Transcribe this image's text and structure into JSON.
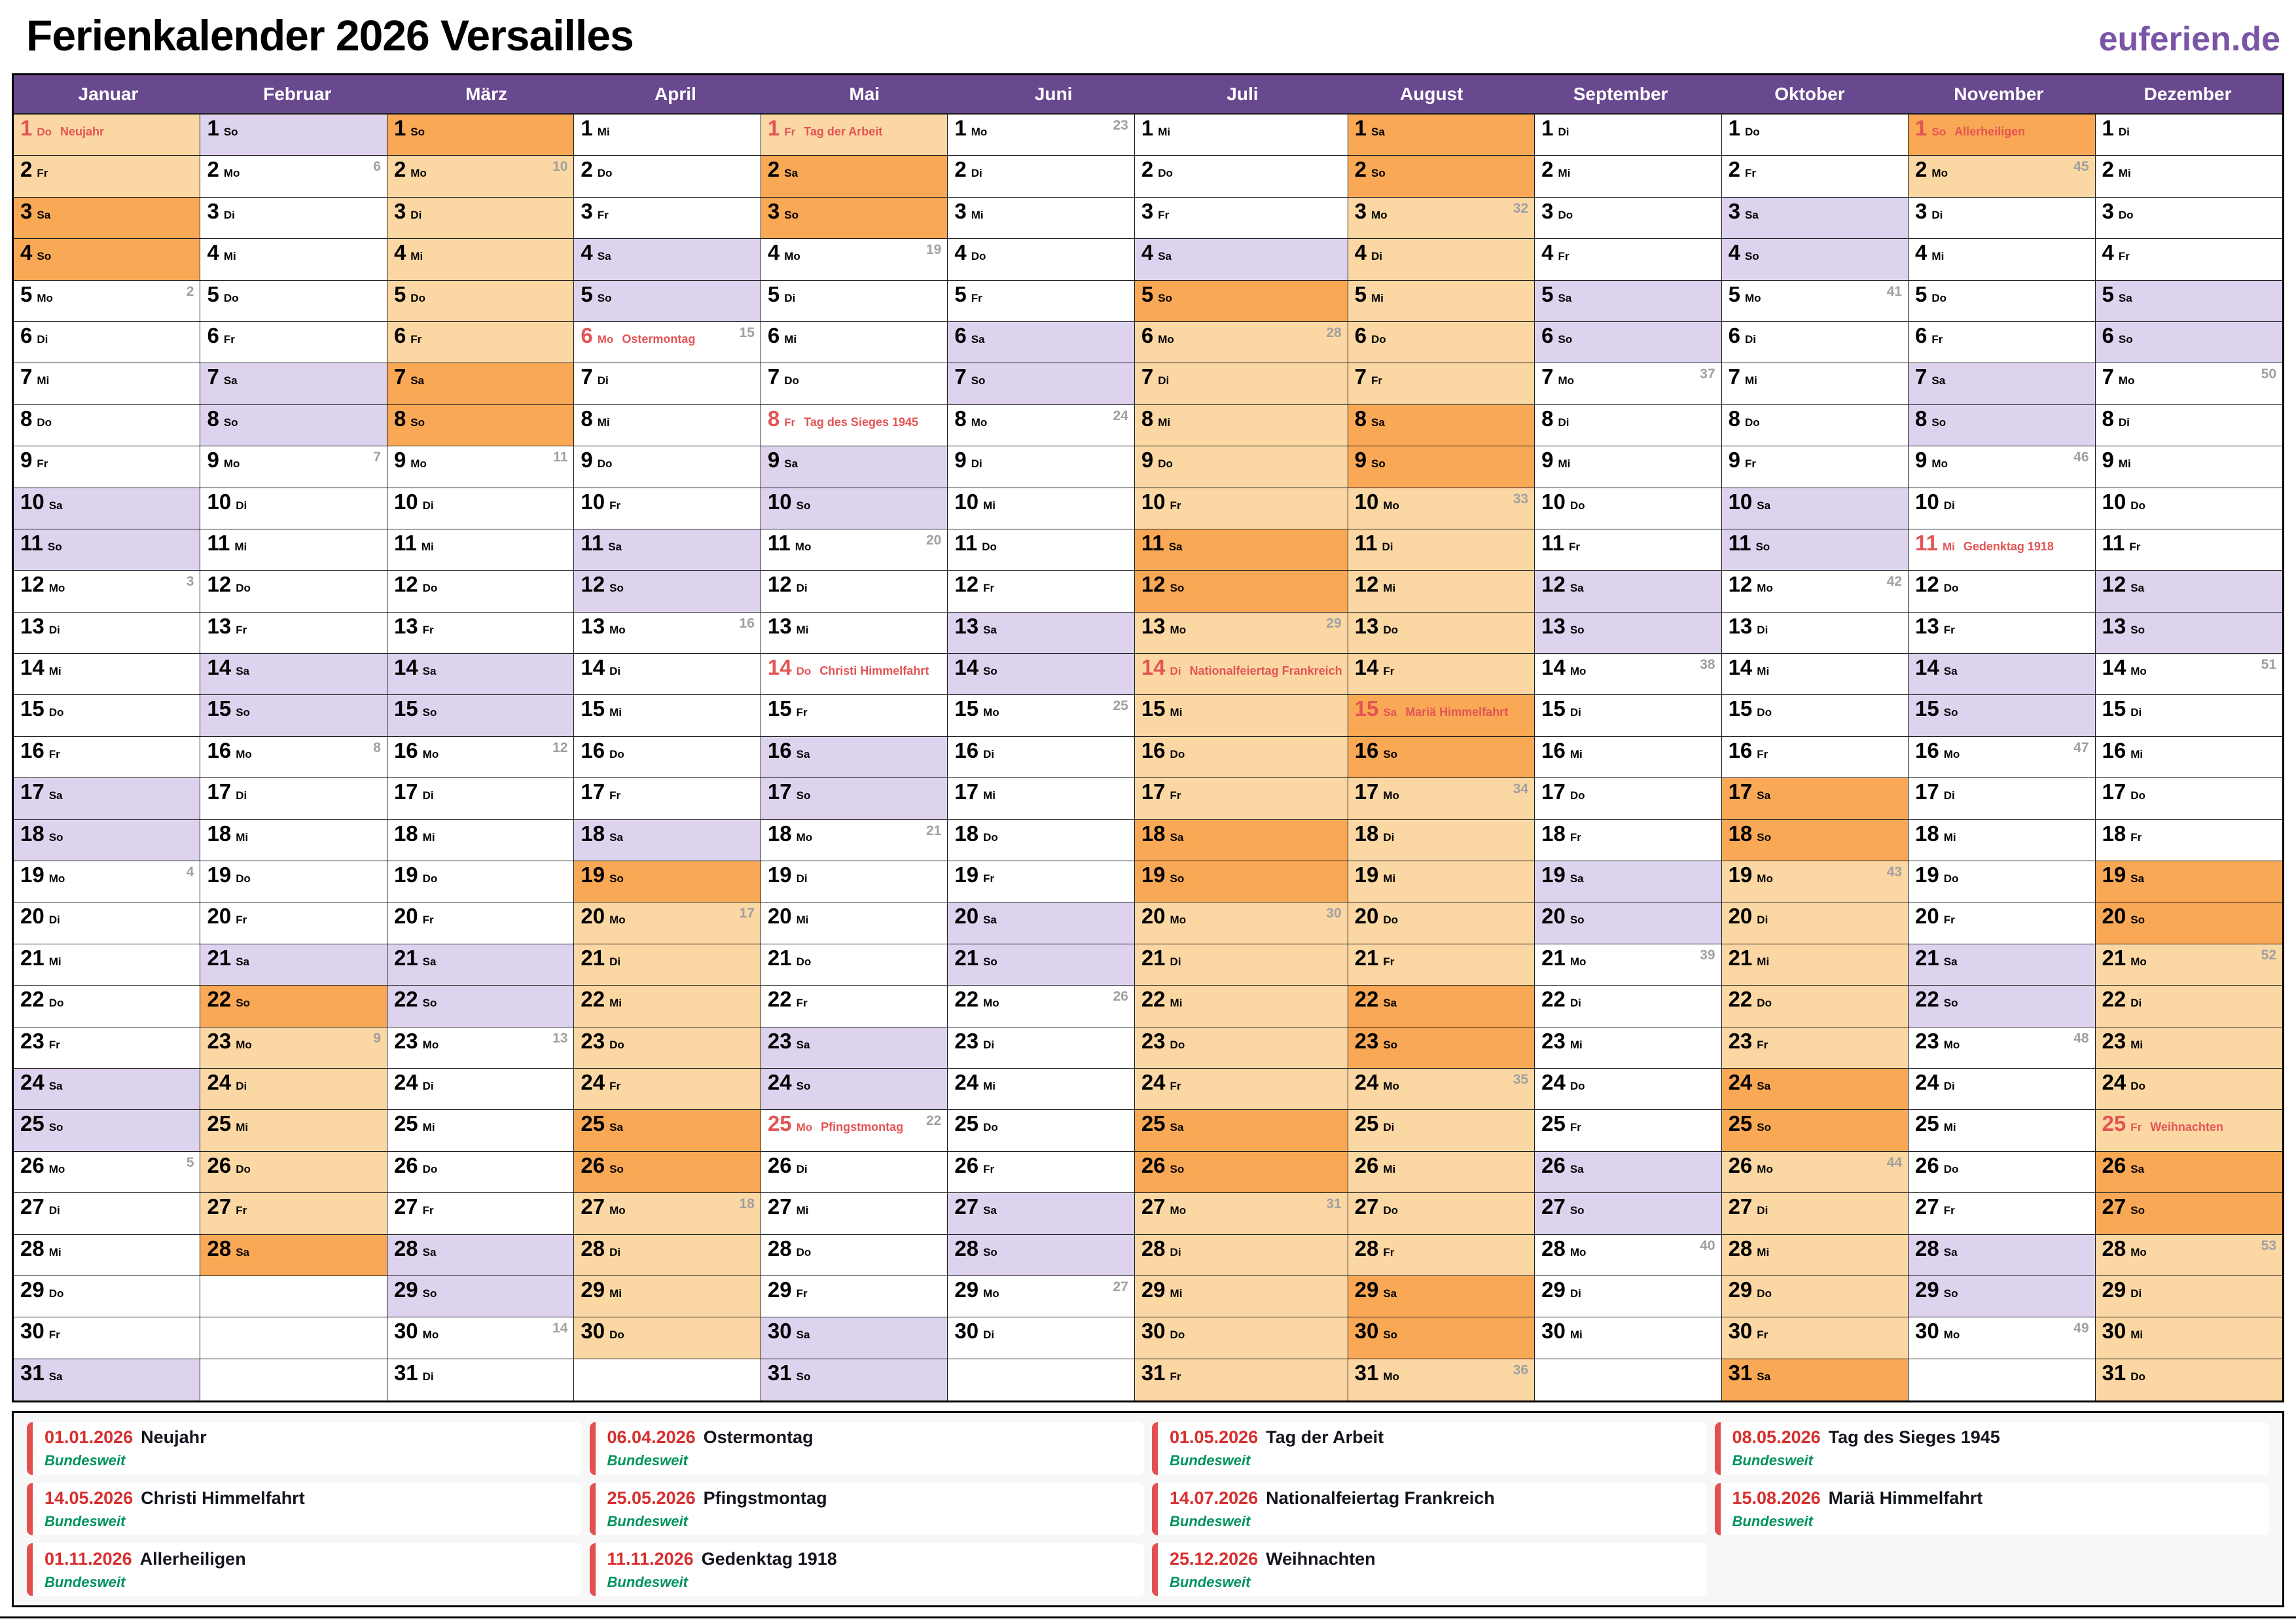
{
  "page": {
    "title": "Ferienkalender 2026 Versailles",
    "logo": "euferien.de"
  },
  "colors": {
    "header_purple": "#68488e",
    "logo_purple": "#7a55a7",
    "school_weekday": "#fbd7a3",
    "school_weekend": "#f9a855",
    "weekend": "#ddd3ee",
    "weekday": "#ffffff",
    "holiday_text": "#e35454",
    "week_number_gray": "#a0a0a0",
    "legend_date_red": "#d63030",
    "legend_border_red": "#e34f4f",
    "region_green": "#00935d",
    "grid_line": "#1c1c1c"
  },
  "calendar": {
    "weekday_abbr": [
      "Mo",
      "Di",
      "Mi",
      "Do",
      "Fr",
      "Sa",
      "So"
    ],
    "months": [
      {
        "name": "Januar",
        "days": 31,
        "first_weekday": 3,
        "week_numbers": {
          "5": 2,
          "12": 3,
          "19": 4,
          "26": 5
        },
        "public_holidays": {
          "1": "Neujahr"
        },
        "school_holidays": [
          [
            1,
            4
          ]
        ]
      },
      {
        "name": "Februar",
        "days": 28,
        "first_weekday": 6,
        "week_numbers": {
          "2": 6,
          "9": 7,
          "16": 8,
          "23": 9
        },
        "public_holidays": {},
        "school_holidays": [
          [
            22,
            28
          ]
        ]
      },
      {
        "name": "März",
        "days": 31,
        "first_weekday": 6,
        "week_numbers": {
          "2": 10,
          "9": 11,
          "16": 12,
          "23": 13,
          "30": 14
        },
        "public_holidays": {},
        "school_holidays": [
          [
            1,
            8
          ]
        ]
      },
      {
        "name": "April",
        "days": 30,
        "first_weekday": 2,
        "week_numbers": {
          "6": 15,
          "13": 16,
          "20": 17,
          "27": 18
        },
        "public_holidays": {
          "6": "Ostermontag"
        },
        "school_holidays": [
          [
            19,
            30
          ]
        ]
      },
      {
        "name": "Mai",
        "days": 31,
        "first_weekday": 4,
        "week_numbers": {
          "4": 19,
          "11": 20,
          "18": 21,
          "25": 22
        },
        "public_holidays": {
          "1": "Tag der Arbeit",
          "8": "Tag des Sieges 1945",
          "14": "Christi Himmelfahrt",
          "25": "Pfingstmontag"
        },
        "school_holidays": [
          [
            1,
            3
          ]
        ]
      },
      {
        "name": "Juni",
        "days": 30,
        "first_weekday": 0,
        "week_numbers": {
          "1": 23,
          "8": 24,
          "15": 25,
          "22": 26,
          "29": 27
        },
        "public_holidays": {},
        "school_holidays": []
      },
      {
        "name": "Juli",
        "days": 31,
        "first_weekday": 2,
        "week_numbers": {
          "6": 28,
          "13": 29,
          "20": 30,
          "27": 31
        },
        "public_holidays": {
          "14": "Nationalfeiertag Frankreich"
        },
        "school_holidays": [
          [
            5,
            31
          ]
        ]
      },
      {
        "name": "August",
        "days": 31,
        "first_weekday": 5,
        "week_numbers": {
          "3": 32,
          "10": 33,
          "17": 34,
          "24": 35,
          "31": 36
        },
        "public_holidays": {
          "15": "Mariä Himmelfahrt"
        },
        "school_holidays": [
          [
            1,
            31
          ]
        ]
      },
      {
        "name": "September",
        "days": 30,
        "first_weekday": 1,
        "week_numbers": {
          "7": 37,
          "14": 38,
          "21": 39,
          "28": 40
        },
        "public_holidays": {},
        "school_holidays": []
      },
      {
        "name": "Oktober",
        "days": 31,
        "first_weekday": 3,
        "week_numbers": {
          "5": 41,
          "12": 42,
          "19": 43,
          "26": 44
        },
        "public_holidays": {},
        "school_holidays": [
          [
            17,
            31
          ]
        ]
      },
      {
        "name": "November",
        "days": 30,
        "first_weekday": 6,
        "week_numbers": {
          "2": 45,
          "9": 46,
          "16": 47,
          "23": 48,
          "30": 49
        },
        "public_holidays": {
          "1": "Allerheiligen",
          "11": "Gedenktag 1918"
        },
        "school_holidays": [
          [
            1,
            2
          ]
        ]
      },
      {
        "name": "Dezember",
        "days": 31,
        "first_weekday": 1,
        "week_numbers": {
          "7": 50,
          "14": 51,
          "21": 52,
          "28": 53
        },
        "public_holidays": {
          "25": "Weihnachten"
        },
        "school_holidays": [
          [
            19,
            31
          ]
        ]
      }
    ]
  },
  "legend": {
    "entries": [
      {
        "date": "01.01.2026",
        "name": "Neujahr",
        "region": "Bundesweit"
      },
      {
        "date": "06.04.2026",
        "name": "Ostermontag",
        "region": "Bundesweit"
      },
      {
        "date": "01.05.2026",
        "name": "Tag der Arbeit",
        "region": "Bundesweit"
      },
      {
        "date": "08.05.2026",
        "name": "Tag des Sieges 1945",
        "region": "Bundesweit"
      },
      {
        "date": "14.05.2026",
        "name": "Christi Himmelfahrt",
        "region": "Bundesweit"
      },
      {
        "date": "25.05.2026",
        "name": "Pfingstmontag",
        "region": "Bundesweit"
      },
      {
        "date": "14.07.2026",
        "name": "Nationalfeiertag Frankreich",
        "region": "Bundesweit"
      },
      {
        "date": "15.08.2026",
        "name": "Mariä Himmelfahrt",
        "region": "Bundesweit"
      },
      {
        "date": "01.11.2026",
        "name": "Allerheiligen",
        "region": "Bundesweit"
      },
      {
        "date": "11.11.2026",
        "name": "Gedenktag 1918",
        "region": "Bundesweit"
      },
      {
        "date": "25.12.2026",
        "name": "Weihnachten",
        "region": "Bundesweit"
      }
    ]
  }
}
